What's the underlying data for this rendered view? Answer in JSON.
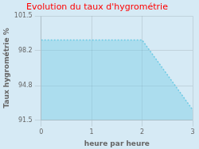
{
  "chart_data": {
    "type": "line",
    "title": "Evolution du taux d'hygrométrie",
    "xlabel": "heure par heure",
    "ylabel": "Taux hygrométrie %",
    "x": [
      0,
      2,
      3
    ],
    "series": [
      {
        "name": "Taux hygrométrie",
        "color": "#6ecae4",
        "line_style": "dotted",
        "values": [
          99.2,
          99.2,
          92.5
        ]
      }
    ],
    "xlim": [
      0,
      3
    ],
    "xticks": [
      0,
      1,
      2,
      3
    ],
    "ylim": [
      91.5,
      101.5
    ],
    "yticks": [
      91.5,
      94.8,
      98.2,
      101.5
    ],
    "grid": true,
    "legend": false
  }
}
